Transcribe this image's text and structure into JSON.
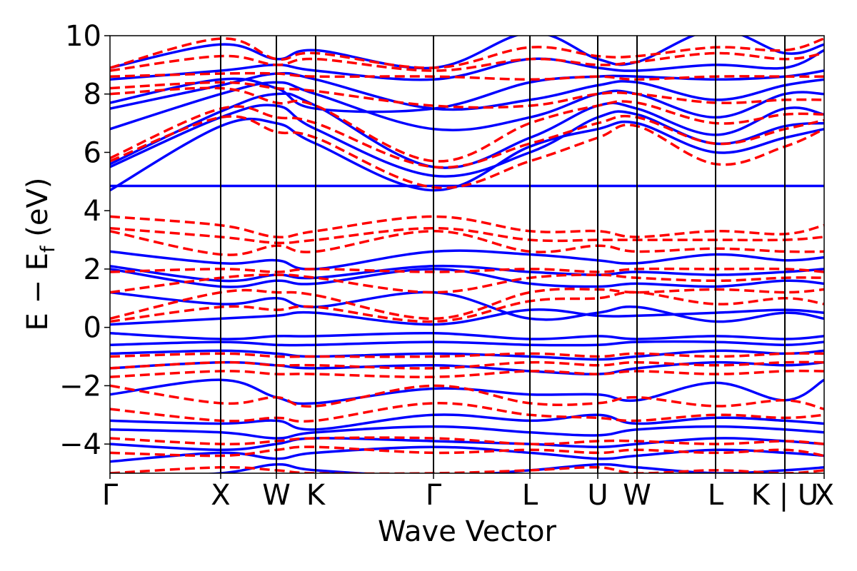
{
  "chart_data": {
    "type": "line",
    "title": "",
    "xlabel": "Wave Vector",
    "ylabel_main": "E − E",
    "ylabel_sub": "f",
    "ylabel_unit": "(eV)",
    "ylim": [
      -5,
      10
    ],
    "yticks": [
      -4,
      -2,
      0,
      2,
      4,
      6,
      8,
      10
    ],
    "ytick_labels": [
      "−4",
      "−2",
      "0",
      "2",
      "4",
      "6",
      "8",
      "10"
    ],
    "kpath": [
      {
        "label": "Γ",
        "x": 0.0
      },
      {
        "label": "X",
        "x": 0.155
      },
      {
        "label": "W",
        "x": 0.233
      },
      {
        "label": "K",
        "x": 0.288
      },
      {
        "label": "Γ",
        "x": 0.453
      },
      {
        "label": "L",
        "x": 0.588
      },
      {
        "label": "U",
        "x": 0.683
      },
      {
        "label": "W",
        "x": 0.738
      },
      {
        "label": "L",
        "x": 0.848
      },
      {
        "label": "K | U",
        "x": 0.945
      },
      {
        "label": "X",
        "x": 1.0
      }
    ],
    "grid": false,
    "legend": "none",
    "series": [
      {
        "style": "solid",
        "color": "#0000ff",
        "bands": [
          [
            -5.2,
            -5.0,
            -4.7,
            -4.9,
            -5.1,
            -4.9,
            -4.7,
            -4.8,
            -5.0,
            -4.9,
            -4.8
          ],
          [
            -4.6,
            -4.3,
            -4.5,
            -4.3,
            -4.1,
            -4.3,
            -4.5,
            -4.4,
            -4.2,
            -4.3,
            -4.4
          ],
          [
            -4.0,
            -4.2,
            -4.0,
            -3.8,
            -3.9,
            -4.0,
            -4.1,
            -4.0,
            -3.8,
            -3.9,
            -4.0
          ],
          [
            -3.5,
            -3.6,
            -3.8,
            -3.6,
            -3.4,
            -3.6,
            -3.7,
            -3.5,
            -3.4,
            -3.5,
            -3.6
          ],
          [
            -3.2,
            -3.3,
            -3.2,
            -3.5,
            -3.0,
            -3.2,
            -3.0,
            -3.3,
            -3.1,
            -3.2,
            -3.3
          ],
          [
            -2.3,
            -1.8,
            -2.4,
            -2.6,
            -2.1,
            -2.3,
            -2.3,
            -2.5,
            -1.9,
            -2.5,
            -1.8
          ],
          [
            -1.4,
            -1.2,
            -1.3,
            -1.4,
            -1.3,
            -1.5,
            -1.6,
            -1.4,
            -1.2,
            -1.3,
            -1.2
          ],
          [
            -0.9,
            -0.8,
            -0.9,
            -1.0,
            -0.9,
            -1.0,
            -1.1,
            -1.0,
            -0.8,
            -0.9,
            -0.8
          ],
          [
            -0.6,
            -0.5,
            -0.6,
            -0.6,
            -0.5,
            -0.6,
            -0.6,
            -0.5,
            -0.5,
            -0.6,
            -0.5
          ],
          [
            -0.2,
            -0.4,
            -0.3,
            -0.3,
            -0.2,
            -0.4,
            -0.3,
            -0.4,
            -0.3,
            -0.4,
            -0.3
          ],
          [
            0.1,
            0.3,
            0.4,
            0.5,
            0.1,
            0.6,
            0.4,
            0.4,
            0.5,
            0.6,
            0.5
          ],
          [
            1.2,
            0.8,
            1.0,
            0.7,
            1.2,
            0.3,
            0.5,
            0.7,
            0.2,
            0.5,
            0.3
          ],
          [
            2.0,
            1.4,
            1.6,
            1.5,
            2.0,
            1.5,
            1.4,
            1.5,
            1.4,
            1.6,
            1.5
          ],
          [
            2.1,
            1.6,
            1.8,
            1.7,
            2.1,
            1.9,
            1.8,
            1.9,
            1.8,
            1.9,
            2.0
          ],
          [
            2.6,
            2.2,
            2.3,
            2.0,
            2.6,
            2.5,
            2.3,
            2.2,
            2.5,
            2.3,
            2.4
          ],
          [
            4.85,
            4.85,
            4.85,
            4.85,
            4.85,
            4.85,
            4.85,
            4.85,
            4.85,
            4.85,
            4.85
          ],
          [
            4.7,
            6.9,
            7.0,
            6.3,
            4.7,
            6.2,
            6.8,
            7.0,
            6.0,
            6.5,
            6.8
          ],
          [
            5.5,
            7.2,
            7.6,
            6.8,
            5.2,
            6.0,
            7.2,
            7.3,
            6.3,
            6.9,
            7.0
          ],
          [
            5.6,
            7.4,
            8.0,
            7.6,
            5.5,
            6.5,
            7.6,
            7.5,
            6.6,
            7.5,
            7.3
          ],
          [
            6.8,
            8.0,
            8.4,
            8.0,
            6.8,
            7.2,
            8.0,
            8.0,
            7.2,
            8.0,
            8.0
          ],
          [
            7.5,
            8.3,
            8.7,
            8.5,
            7.5,
            7.8,
            8.3,
            8.4,
            7.8,
            8.3,
            8.5
          ],
          [
            7.7,
            8.5,
            8.2,
            7.5,
            7.5,
            8.4,
            8.6,
            8.6,
            8.5,
            8.6,
            8.8
          ],
          [
            8.5,
            8.8,
            9.0,
            8.8,
            8.5,
            9.2,
            8.9,
            8.8,
            9.0,
            8.9,
            9.5
          ],
          [
            8.9,
            9.7,
            9.2,
            9.5,
            8.9,
            10.1,
            9.2,
            9.1,
            10.2,
            9.4,
            9.7
          ]
        ]
      },
      {
        "style": "dashed",
        "color": "#ff0000",
        "bands": [
          [
            -5.0,
            -4.8,
            -4.9,
            -5.0,
            -5.0,
            -4.9,
            -4.8,
            -5.0,
            -4.9,
            -5.0,
            -4.9
          ],
          [
            -4.3,
            -4.4,
            -4.2,
            -4.1,
            -4.3,
            -4.2,
            -4.3,
            -4.2,
            -4.3,
            -4.2,
            -4.4
          ],
          [
            -3.8,
            -4.0,
            -3.9,
            -3.8,
            -3.8,
            -4.0,
            -3.9,
            -3.9,
            -4.0,
            -3.9,
            -4.0
          ],
          [
            -2.8,
            -3.2,
            -3.1,
            -3.2,
            -2.6,
            -3.0,
            -3.1,
            -3.2,
            -3.0,
            -3.1,
            -3.0
          ],
          [
            -2.0,
            -2.6,
            -2.4,
            -2.7,
            -2.0,
            -2.6,
            -2.6,
            -2.4,
            -2.7,
            -2.5,
            -2.8
          ],
          [
            -1.7,
            -1.5,
            -1.6,
            -1.6,
            -1.7,
            -1.5,
            -1.6,
            -1.5,
            -1.6,
            -1.5,
            -1.5
          ],
          [
            -1.4,
            -1.2,
            -1.3,
            -1.3,
            -1.4,
            -1.2,
            -1.3,
            -1.2,
            -1.3,
            -1.2,
            -1.2
          ],
          [
            -1.0,
            -0.9,
            -1.0,
            -1.0,
            -1.0,
            -0.9,
            -1.0,
            -0.9,
            -1.0,
            -0.9,
            -0.9
          ],
          [
            0.2,
            0.7,
            0.6,
            0.7,
            0.2,
            0.9,
            1.0,
            1.2,
            0.8,
            1.0,
            0.8
          ],
          [
            0.3,
            1.2,
            1.2,
            1.1,
            0.3,
            1.2,
            1.3,
            1.2,
            1.3,
            1.2,
            1.3
          ],
          [
            1.2,
            1.7,
            1.8,
            1.7,
            1.2,
            1.7,
            1.8,
            1.7,
            1.6,
            1.7,
            1.7
          ],
          [
            1.9,
            2.0,
            1.9,
            2.0,
            1.9,
            2.0,
            1.9,
            2.0,
            2.0,
            2.0,
            1.9
          ],
          [
            3.3,
            2.5,
            2.8,
            2.6,
            3.3,
            2.6,
            2.8,
            2.6,
            2.7,
            2.6,
            2.6
          ],
          [
            3.4,
            3.1,
            2.9,
            3.0,
            3.4,
            3.0,
            3.0,
            3.0,
            3.0,
            3.0,
            3.1
          ],
          [
            3.8,
            3.5,
            3.1,
            3.3,
            3.8,
            3.3,
            3.3,
            3.1,
            3.3,
            3.2,
            3.5
          ],
          [
            5.7,
            7.2,
            6.7,
            6.5,
            4.8,
            5.7,
            6.5,
            6.9,
            5.6,
            6.2,
            6.8
          ],
          [
            5.8,
            7.5,
            7.2,
            7.0,
            5.5,
            6.3,
            7.0,
            7.2,
            6.3,
            6.8,
            7.1
          ],
          [
            8.0,
            8.2,
            7.7,
            7.6,
            5.7,
            7.0,
            7.6,
            7.7,
            7.0,
            7.3,
            7.3
          ],
          [
            8.2,
            8.4,
            8.2,
            8.1,
            7.6,
            7.6,
            8.0,
            8.0,
            7.7,
            7.8,
            7.8
          ],
          [
            8.6,
            8.7,
            8.7,
            8.6,
            8.6,
            8.5,
            8.6,
            8.5,
            8.6,
            8.6,
            8.6
          ],
          [
            8.8,
            9.3,
            9.0,
            9.2,
            8.8,
            9.2,
            9.0,
            9.1,
            9.4,
            9.2,
            9.4
          ],
          [
            8.9,
            9.9,
            9.2,
            9.4,
            8.9,
            9.6,
            9.3,
            9.3,
            9.6,
            9.5,
            9.9
          ]
        ]
      }
    ]
  }
}
